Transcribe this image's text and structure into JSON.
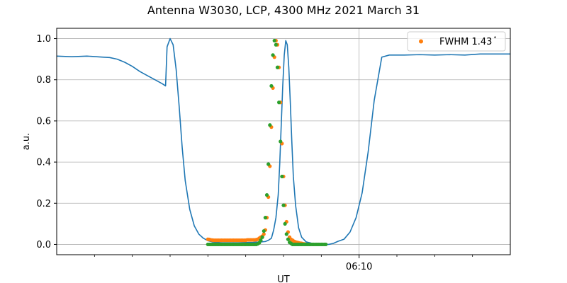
{
  "chart_data": {
    "type": "line",
    "title": "Antenna W3030, LCP, 4300 MHz 2021 March 31",
    "xlabel": "UT",
    "ylabel": "a.u.",
    "xlim": [
      0,
      300
    ],
    "ylim": [
      -0.05,
      1.05
    ],
    "yticks": [
      0.0,
      0.2,
      0.4,
      0.6,
      0.8,
      1.0
    ],
    "ytick_labels": [
      "0.0",
      "0.2",
      "0.4",
      "0.6",
      "0.8",
      "1.0"
    ],
    "xticks_major": [
      {
        "x": 200,
        "label": "06:10"
      }
    ],
    "xticks_minor": [
      25,
      50,
      75,
      100,
      125,
      150,
      175,
      225,
      250,
      275
    ],
    "grid": true,
    "legend_position": "top-right",
    "colors": {
      "main": "#1f77b4",
      "series1": "#ff7f0e",
      "series2": "#2ca02c",
      "grid": "#b0b0b0"
    },
    "main_line": {
      "x": [
        0,
        10,
        20,
        30,
        35,
        40,
        45,
        50,
        55,
        60,
        65,
        70,
        72,
        73,
        75,
        77,
        79,
        81,
        83,
        85,
        88,
        91,
        94,
        97,
        100,
        103,
        106,
        109,
        112,
        115,
        120,
        125,
        130,
        135,
        138,
        140,
        142,
        143.5,
        145,
        146.5,
        147.5,
        148.5,
        149.5,
        150.5,
        151.5,
        152.5,
        153.5,
        154.5,
        155.5,
        156.5,
        158,
        160,
        162,
        165,
        170,
        175,
        180,
        183,
        186,
        190,
        194,
        198,
        202,
        206,
        210,
        215,
        220,
        230,
        240,
        250,
        260,
        270,
        280,
        290,
        300
      ],
      "y": [
        0.915,
        0.912,
        0.915,
        0.91,
        0.908,
        0.9,
        0.885,
        0.865,
        0.84,
        0.82,
        0.8,
        0.78,
        0.77,
        0.96,
        1.0,
        0.97,
        0.85,
        0.67,
        0.47,
        0.31,
        0.17,
        0.09,
        0.05,
        0.03,
        0.018,
        0.012,
        0.01,
        0.008,
        0.008,
        0.008,
        0.008,
        0.009,
        0.01,
        0.012,
        0.014,
        0.02,
        0.03,
        0.07,
        0.13,
        0.24,
        0.39,
        0.58,
        0.77,
        0.92,
        0.99,
        0.97,
        0.86,
        0.69,
        0.5,
        0.33,
        0.19,
        0.08,
        0.035,
        0.012,
        0.003,
        0.0,
        0.0,
        0.005,
        0.015,
        0.025,
        0.06,
        0.13,
        0.25,
        0.45,
        0.7,
        0.91,
        0.92,
        0.92,
        0.922,
        0.92,
        0.922,
        0.92,
        0.925,
        0.925,
        0.925
      ]
    },
    "series": [
      {
        "name": "FWHM 1.43$^\\circ$",
        "legend_label": "FWHM 1.43",
        "legend_superscript": "°",
        "points": [
          [
            100,
            0.025
          ],
          [
            101,
            0.024
          ],
          [
            102,
            0.022
          ],
          [
            103,
            0.021
          ],
          [
            104,
            0.02
          ],
          [
            105,
            0.02
          ],
          [
            106,
            0.02
          ],
          [
            107,
            0.02
          ],
          [
            108,
            0.02
          ],
          [
            109,
            0.02
          ],
          [
            110,
            0.02
          ],
          [
            111,
            0.02
          ],
          [
            112,
            0.02
          ],
          [
            113,
            0.02
          ],
          [
            114,
            0.02
          ],
          [
            115,
            0.02
          ],
          [
            116,
            0.02
          ],
          [
            117,
            0.02
          ],
          [
            118,
            0.02
          ],
          [
            119,
            0.02
          ],
          [
            120,
            0.02
          ],
          [
            121,
            0.02
          ],
          [
            122,
            0.02
          ],
          [
            123,
            0.02
          ],
          [
            124,
            0.02
          ],
          [
            125,
            0.02
          ],
          [
            126,
            0.022
          ],
          [
            127,
            0.022
          ],
          [
            128,
            0.022
          ],
          [
            129,
            0.022
          ],
          [
            130,
            0.022
          ],
          [
            131,
            0.022
          ],
          [
            132,
            0.023
          ],
          [
            133,
            0.025
          ],
          [
            134,
            0.03
          ],
          [
            135,
            0.035
          ],
          [
            136,
            0.04
          ],
          [
            137,
            0.05
          ],
          [
            138,
            0.07
          ],
          [
            139,
            0.13
          ],
          [
            140,
            0.23
          ],
          [
            141,
            0.38
          ],
          [
            142,
            0.57
          ],
          [
            143,
            0.76
          ],
          [
            144,
            0.91
          ],
          [
            145,
            0.99
          ],
          [
            146,
            0.97
          ],
          [
            147,
            0.86
          ],
          [
            148,
            0.69
          ],
          [
            149,
            0.49
          ],
          [
            150,
            0.33
          ],
          [
            151,
            0.19
          ],
          [
            152,
            0.11
          ],
          [
            153,
            0.06
          ],
          [
            154,
            0.035
          ],
          [
            155,
            0.025
          ],
          [
            156,
            0.02
          ],
          [
            157,
            0.015
          ],
          [
            158,
            0.012
          ],
          [
            159,
            0.01
          ],
          [
            160,
            0.008
          ],
          [
            161,
            0.006
          ],
          [
            162,
            0.005
          ],
          [
            163,
            0.003
          ],
          [
            164,
            0.002
          ]
        ]
      },
      {
        "name": "",
        "points": [
          [
            100,
            0.0
          ],
          [
            101,
            0.0
          ],
          [
            102,
            0.0
          ],
          [
            103,
            0.0
          ],
          [
            104,
            0.0
          ],
          [
            105,
            0.0
          ],
          [
            106,
            0.0
          ],
          [
            107,
            0.0
          ],
          [
            108,
            0.0
          ],
          [
            109,
            0.0
          ],
          [
            110,
            0.0
          ],
          [
            111,
            0.0
          ],
          [
            112,
            0.0
          ],
          [
            113,
            0.0
          ],
          [
            114,
            0.0
          ],
          [
            115,
            0.0
          ],
          [
            116,
            0.0
          ],
          [
            117,
            0.0
          ],
          [
            118,
            0.0
          ],
          [
            119,
            0.0
          ],
          [
            120,
            0.0
          ],
          [
            121,
            0.0
          ],
          [
            122,
            0.0
          ],
          [
            123,
            0.0
          ],
          [
            124,
            0.0
          ],
          [
            125,
            0.0
          ],
          [
            126,
            0.0
          ],
          [
            127,
            0.0
          ],
          [
            128,
            0.0
          ],
          [
            129,
            0.0
          ],
          [
            130,
            0.0
          ],
          [
            131,
            0.0
          ],
          [
            132,
            0.0
          ],
          [
            133,
            0.003
          ],
          [
            134,
            0.008
          ],
          [
            135,
            0.02
          ],
          [
            136,
            0.035
          ],
          [
            137,
            0.065
          ],
          [
            138,
            0.13
          ],
          [
            139,
            0.24
          ],
          [
            140,
            0.39
          ],
          [
            141,
            0.58
          ],
          [
            142,
            0.77
          ],
          [
            143,
            0.92
          ],
          [
            144,
            0.99
          ],
          [
            145,
            0.97
          ],
          [
            146,
            0.86
          ],
          [
            147,
            0.69
          ],
          [
            148,
            0.5
          ],
          [
            149,
            0.33
          ],
          [
            150,
            0.19
          ],
          [
            151,
            0.1
          ],
          [
            152,
            0.05
          ],
          [
            153,
            0.025
          ],
          [
            154,
            0.01
          ],
          [
            155,
            0.005
          ],
          [
            156,
            0.0
          ],
          [
            157,
            0.0
          ],
          [
            158,
            0.0
          ],
          [
            159,
            0.0
          ],
          [
            160,
            0.0
          ],
          [
            161,
            0.0
          ],
          [
            162,
            0.0
          ],
          [
            163,
            0.0
          ],
          [
            164,
            0.0
          ],
          [
            165,
            0.0
          ],
          [
            166,
            0.0
          ],
          [
            167,
            0.0
          ],
          [
            168,
            0.0
          ],
          [
            169,
            0.0
          ],
          [
            170,
            0.0
          ],
          [
            171,
            0.0
          ],
          [
            172,
            0.0
          ],
          [
            173,
            0.0
          ],
          [
            174,
            0.0
          ],
          [
            175,
            0.0
          ],
          [
            176,
            0.0
          ],
          [
            177,
            0.0
          ],
          [
            178,
            0.0
          ]
        ]
      }
    ]
  }
}
